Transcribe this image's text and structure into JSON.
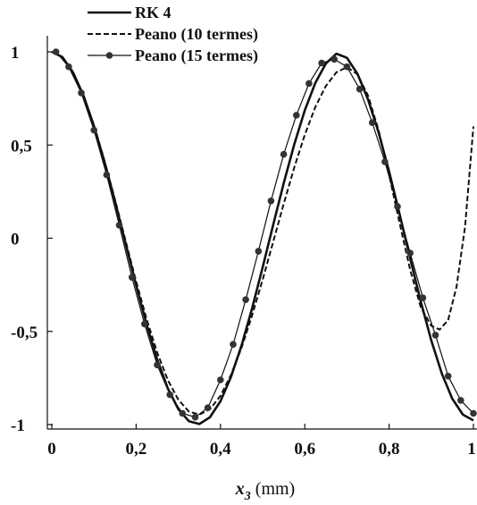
{
  "chart_data": {
    "type": "line",
    "xlabel": {
      "var": "x",
      "sub": "3",
      "unit": " (mm)"
    },
    "xlim": [
      0,
      1
    ],
    "ylim": [
      -1,
      1
    ],
    "xticks": [
      0,
      0.2,
      0.4,
      0.6,
      0.8,
      1
    ],
    "xtick_labels": [
      "0",
      "0,2",
      "0,4",
      "0,6",
      "0,8",
      "1"
    ],
    "yticks": [
      1,
      0.5,
      0,
      -0.5,
      -1
    ],
    "ytick_labels": [
      "1",
      "0,5",
      "0",
      "-0,5",
      "-1"
    ],
    "grid": false,
    "legend_position": "top-left",
    "series": [
      {
        "name": "RK 4",
        "style": "solid",
        "x": [
          0,
          0.025,
          0.05,
          0.075,
          0.1,
          0.125,
          0.15,
          0.175,
          0.2,
          0.225,
          0.25,
          0.275,
          0.3,
          0.325,
          0.35,
          0.375,
          0.4,
          0.425,
          0.45,
          0.475,
          0.5,
          0.525,
          0.55,
          0.575,
          0.6,
          0.625,
          0.65,
          0.675,
          0.7,
          0.725,
          0.75,
          0.775,
          0.8,
          0.825,
          0.85,
          0.875,
          0.9,
          0.925,
          0.95,
          0.975,
          1.0
        ],
        "y": [
          1.0,
          0.972,
          0.891,
          0.766,
          0.602,
          0.409,
          0.196,
          -0.029,
          -0.253,
          -0.464,
          -0.651,
          -0.805,
          -0.917,
          -0.982,
          -0.997,
          -0.961,
          -0.875,
          -0.744,
          -0.576,
          -0.377,
          -0.157,
          0.071,
          0.295,
          0.503,
          0.686,
          0.833,
          0.937,
          0.99,
          0.968,
          0.882,
          0.745,
          0.568,
          0.358,
          0.128,
          -0.109,
          -0.339,
          -0.548,
          -0.726,
          -0.862,
          -0.947,
          -0.978
        ]
      },
      {
        "name": "Peano (10 termes)",
        "style": "dashed",
        "x": [
          0,
          0.025,
          0.05,
          0.075,
          0.1,
          0.125,
          0.15,
          0.175,
          0.2,
          0.225,
          0.25,
          0.275,
          0.3,
          0.325,
          0.35,
          0.375,
          0.4,
          0.425,
          0.45,
          0.475,
          0.5,
          0.525,
          0.55,
          0.575,
          0.6,
          0.625,
          0.65,
          0.675,
          0.7,
          0.725,
          0.75,
          0.775,
          0.8,
          0.825,
          0.85,
          0.875,
          0.9,
          0.92,
          0.94,
          0.96,
          0.98,
          1.0
        ],
        "y": [
          1.0,
          0.972,
          0.892,
          0.768,
          0.606,
          0.416,
          0.206,
          -0.014,
          -0.232,
          -0.435,
          -0.614,
          -0.76,
          -0.866,
          -0.93,
          -0.947,
          -0.918,
          -0.846,
          -0.734,
          -0.588,
          -0.415,
          -0.223,
          -0.02,
          0.184,
          0.379,
          0.555,
          0.704,
          0.817,
          0.89,
          0.918,
          0.88,
          0.765,
          0.58,
          0.34,
          0.08,
          -0.17,
          -0.37,
          -0.47,
          -0.49,
          -0.44,
          -0.26,
          0.06,
          0.6
        ]
      },
      {
        "name": "Peano (15 termes)",
        "style": "solid-markers",
        "x": [
          0.01,
          0.04,
          0.07,
          0.1,
          0.13,
          0.16,
          0.19,
          0.22,
          0.25,
          0.28,
          0.31,
          0.34,
          0.37,
          0.4,
          0.43,
          0.46,
          0.49,
          0.52,
          0.55,
          0.58,
          0.61,
          0.64,
          0.67,
          0.7,
          0.73,
          0.76,
          0.79,
          0.82,
          0.85,
          0.88,
          0.91,
          0.94,
          0.97,
          1.0
        ],
        "y": [
          1.0,
          0.92,
          0.78,
          0.58,
          0.34,
          0.07,
          -0.21,
          -0.46,
          -0.68,
          -0.84,
          -0.94,
          -0.96,
          -0.91,
          -0.76,
          -0.57,
          -0.33,
          -0.07,
          0.2,
          0.45,
          0.66,
          0.83,
          0.94,
          0.96,
          0.92,
          0.8,
          0.62,
          0.41,
          0.17,
          -0.08,
          -0.32,
          -0.52,
          -0.74,
          -0.87,
          -0.94
        ]
      }
    ]
  }
}
